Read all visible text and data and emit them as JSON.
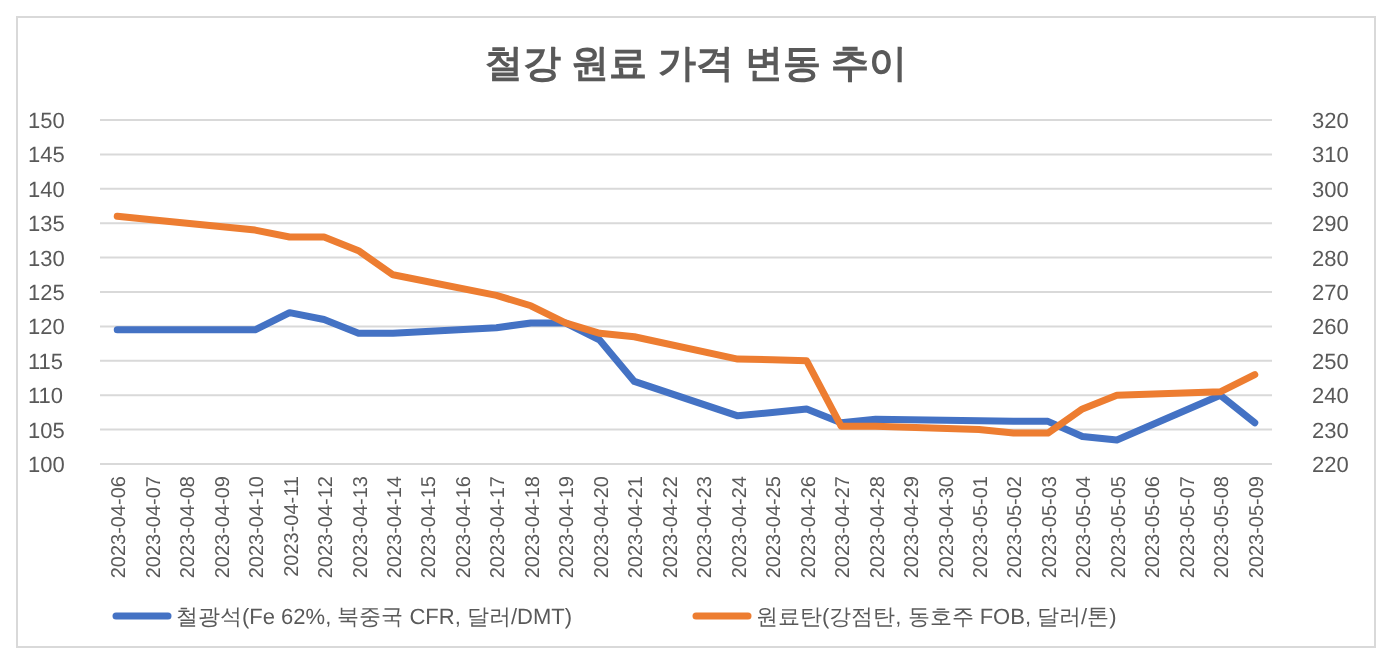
{
  "chart_data": {
    "type": "line",
    "title": "철강 원료 가격 변동 추이",
    "categories": [
      "2023-04-06",
      "2023-04-07",
      "2023-04-08",
      "2023-04-09",
      "2023-04-10",
      "2023-04-11",
      "2023-04-12",
      "2023-04-13",
      "2023-04-14",
      "2023-04-15",
      "2023-04-16",
      "2023-04-17",
      "2023-04-18",
      "2023-04-19",
      "2023-04-20",
      "2023-04-21",
      "2023-04-22",
      "2023-04-23",
      "2023-04-24",
      "2023-04-25",
      "2023-04-26",
      "2023-04-27",
      "2023-04-28",
      "2023-04-29",
      "2023-04-30",
      "2023-05-01",
      "2023-05-02",
      "2023-05-03",
      "2023-05-04",
      "2023-05-05",
      "2023-05-06",
      "2023-05-07",
      "2023-05-08",
      "2023-05-09"
    ],
    "series": [
      {
        "name": "철광석(Fe 62%, 북중국 CFR, 달러/DMT)",
        "color": "#4472c4",
        "values": [
          119.5,
          119.5,
          null,
          null,
          119.5,
          122,
          121,
          119,
          119,
          null,
          null,
          119.8,
          120.5,
          120.5,
          118,
          112,
          null,
          null,
          107,
          107.5,
          108,
          106,
          106.5,
          null,
          null,
          106.3,
          106.2,
          106.2,
          104,
          103.5,
          null,
          null,
          110,
          106
        ]
      },
      {
        "name": "원료탄(강점탄, 동호주 FOB, 달러/톤)",
        "color": "#ed7d31",
        "axis": "y2",
        "values": [
          292,
          291,
          null,
          null,
          288,
          286,
          286,
          282,
          275,
          null,
          null,
          269,
          266,
          261,
          258,
          257,
          null,
          null,
          250.5,
          250.3,
          250,
          231,
          231,
          null,
          null,
          230,
          229,
          229,
          236,
          240,
          null,
          null,
          241,
          246
        ]
      }
    ],
    "ylim": [
      100,
      150
    ],
    "yticks": [
      100,
      105,
      110,
      115,
      120,
      125,
      130,
      135,
      140,
      145,
      150
    ],
    "y2lim": [
      220,
      320
    ],
    "y2ticks": [
      220,
      230,
      240,
      250,
      260,
      270,
      280,
      290,
      300,
      310,
      320
    ],
    "grid": "y",
    "legend": "bottom",
    "line_style": "solid",
    "marker": "none"
  }
}
